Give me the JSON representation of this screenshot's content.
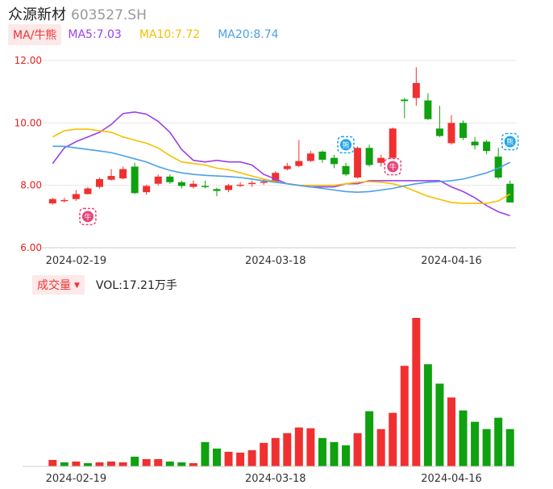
{
  "stock": {
    "name": "众源新材",
    "code": "603527.SH"
  },
  "ma_legend": {
    "tag": "MA/牛熊",
    "ma5": "MA5:7.03",
    "ma10": "MA10:7.72",
    "ma20": "MA20:8.74"
  },
  "volume_legend": {
    "tag": "成交量",
    "value": "VOL:17.21万手"
  },
  "colors": {
    "up": "#f03030",
    "down": "#0fa10f",
    "ma5": "#9b40e8",
    "ma10": "#f5c000",
    "ma20": "#4aa0e8",
    "axis": "#e02020"
  },
  "chart_data": [
    {
      "type": "candlestick",
      "title": "",
      "y_ticks": [
        "12.00",
        "10.00",
        "8.00",
        "6.00"
      ],
      "y_tick_values": [
        12,
        10,
        8,
        6
      ],
      "ylim": [
        6,
        12
      ],
      "x_ticks": [
        {
          "label": "2024-02-19",
          "index": 2
        },
        {
          "label": "2024-03-18",
          "index": 19
        },
        {
          "label": "2024-04-16",
          "index": 34
        }
      ],
      "candles": [
        {
          "o": 7.42,
          "c": 7.56,
          "h": 7.6,
          "l": 7.38
        },
        {
          "o": 7.5,
          "c": 7.53,
          "h": 7.6,
          "l": 7.45
        },
        {
          "o": 7.56,
          "c": 7.72,
          "h": 7.85,
          "l": 7.5
        },
        {
          "o": 7.72,
          "c": 7.9,
          "h": 7.95,
          "l": 7.7
        },
        {
          "o": 7.95,
          "c": 8.2,
          "h": 8.25,
          "l": 7.9
        },
        {
          "o": 8.18,
          "c": 8.3,
          "h": 8.52,
          "l": 8.15
        },
        {
          "o": 8.22,
          "c": 8.52,
          "h": 8.6,
          "l": 8.2
        },
        {
          "o": 8.6,
          "c": 7.75,
          "h": 8.72,
          "l": 7.72
        },
        {
          "o": 7.78,
          "c": 7.98,
          "h": 8.02,
          "l": 7.7
        },
        {
          "o": 8.05,
          "c": 8.28,
          "h": 8.35,
          "l": 8.0
        },
        {
          "o": 8.28,
          "c": 8.1,
          "h": 8.35,
          "l": 8.05
        },
        {
          "o": 8.1,
          "c": 7.98,
          "h": 8.15,
          "l": 7.9
        },
        {
          "o": 7.95,
          "c": 8.05,
          "h": 8.15,
          "l": 7.9
        },
        {
          "o": 7.98,
          "c": 7.96,
          "h": 8.15,
          "l": 7.9
        },
        {
          "o": 7.88,
          "c": 7.82,
          "h": 7.92,
          "l": 7.65
        },
        {
          "o": 7.85,
          "c": 8.0,
          "h": 8.05,
          "l": 7.78
        },
        {
          "o": 8.02,
          "c": 8.02,
          "h": 8.1,
          "l": 7.95
        },
        {
          "o": 8.05,
          "c": 8.08,
          "h": 8.15,
          "l": 7.95
        },
        {
          "o": 8.1,
          "c": 8.12,
          "h": 8.2,
          "l": 8.02
        },
        {
          "o": 8.12,
          "c": 8.4,
          "h": 8.45,
          "l": 8.1
        },
        {
          "o": 8.52,
          "c": 8.62,
          "h": 8.72,
          "l": 8.48
        },
        {
          "o": 8.62,
          "c": 8.78,
          "h": 9.45,
          "l": 8.58
        },
        {
          "o": 8.78,
          "c": 9.02,
          "h": 9.1,
          "l": 8.75
        },
        {
          "o": 9.08,
          "c": 8.82,
          "h": 9.12,
          "l": 8.72
        },
        {
          "o": 8.88,
          "c": 8.68,
          "h": 8.98,
          "l": 8.55
        },
        {
          "o": 8.62,
          "c": 8.35,
          "h": 8.72,
          "l": 8.3
        },
        {
          "o": 8.25,
          "c": 9.2,
          "h": 9.25,
          "l": 8.22
        },
        {
          "o": 9.2,
          "c": 8.65,
          "h": 9.3,
          "l": 8.6
        },
        {
          "o": 8.72,
          "c": 8.88,
          "h": 8.98,
          "l": 8.6
        },
        {
          "o": 8.88,
          "c": 9.82,
          "h": 9.85,
          "l": 8.85
        },
        {
          "o": 10.75,
          "c": 10.7,
          "h": 10.8,
          "l": 10.15
        },
        {
          "o": 10.8,
          "c": 11.28,
          "h": 11.78,
          "l": 10.55
        },
        {
          "o": 10.72,
          "c": 10.12,
          "h": 10.95,
          "l": 10.1
        },
        {
          "o": 9.82,
          "c": 9.58,
          "h": 10.55,
          "l": 9.55
        },
        {
          "o": 9.35,
          "c": 10.0,
          "h": 10.25,
          "l": 9.3
        },
        {
          "o": 10.0,
          "c": 9.52,
          "h": 10.08,
          "l": 9.45
        },
        {
          "o": 9.4,
          "c": 9.28,
          "h": 9.55,
          "l": 9.15
        },
        {
          "o": 9.4,
          "c": 9.1,
          "h": 9.45,
          "l": 9.0
        },
        {
          "o": 8.92,
          "c": 8.25,
          "h": 9.2,
          "l": 8.2
        },
        {
          "o": 8.05,
          "c": 7.45,
          "h": 8.15,
          "l": 7.45
        }
      ],
      "series": [
        {
          "name": "MA5",
          "values": [
            8.7,
            9.2,
            9.4,
            9.55,
            9.7,
            9.95,
            10.3,
            10.35,
            10.28,
            10.05,
            9.7,
            9.15,
            8.8,
            8.75,
            8.8,
            8.75,
            8.75,
            8.65,
            8.35,
            8.2,
            8.05,
            8.0,
            7.95,
            7.95,
            7.95,
            8.05,
            8.05,
            8.15,
            8.15,
            8.15,
            8.15,
            8.15,
            8.15,
            8.15,
            7.95,
            7.8,
            7.6,
            7.35,
            7.15,
            7.03
          ]
        },
        {
          "name": "MA10",
          "values": [
            9.55,
            9.75,
            9.8,
            9.8,
            9.75,
            9.7,
            9.55,
            9.45,
            9.35,
            9.2,
            8.95,
            8.75,
            8.7,
            8.65,
            8.55,
            8.5,
            8.4,
            8.3,
            8.2,
            8.12,
            8.05,
            8.0,
            8.0,
            8.0,
            8.0,
            8.05,
            8.1,
            8.12,
            8.1,
            8.05,
            7.95,
            7.8,
            7.65,
            7.55,
            7.45,
            7.42,
            7.42,
            7.42,
            7.5,
            7.72
          ]
        },
        {
          "name": "MA20",
          "values": [
            9.25,
            9.25,
            9.2,
            9.15,
            9.1,
            9.05,
            8.95,
            8.85,
            8.75,
            8.6,
            8.48,
            8.4,
            8.35,
            8.32,
            8.3,
            8.28,
            8.25,
            8.2,
            8.15,
            8.1,
            8.05,
            8.0,
            7.95,
            7.9,
            7.85,
            7.8,
            7.78,
            7.8,
            7.85,
            7.9,
            7.98,
            8.05,
            8.1,
            8.12,
            8.15,
            8.2,
            8.3,
            8.4,
            8.55,
            8.74
          ]
        }
      ],
      "markers": [
        {
          "label": "牛",
          "index": 3,
          "price": 7.0,
          "kind": "bull"
        },
        {
          "label": "熊",
          "index": 25,
          "price": 9.3,
          "kind": "bear"
        },
        {
          "label": "牛",
          "index": 29,
          "price": 8.6,
          "kind": "bull"
        },
        {
          "label": "熊",
          "index": 39,
          "price": 9.4,
          "kind": "bear"
        }
      ]
    },
    {
      "type": "bar",
      "title": "",
      "x_ticks": [
        {
          "label": "2024-02-19",
          "index": 2
        },
        {
          "label": "2024-03-18",
          "index": 19
        },
        {
          "label": "2024-04-16",
          "index": 34
        }
      ],
      "values": [
        0.8,
        0.5,
        0.6,
        0.4,
        0.5,
        0.6,
        0.5,
        1.2,
        0.9,
        0.9,
        0.6,
        0.5,
        0.4,
        3.0,
        2.2,
        1.8,
        1.7,
        2.0,
        2.9,
        3.5,
        4.1,
        4.8,
        4.7,
        3.5,
        3.0,
        2.6,
        4.1,
        6.8,
        4.6,
        6.6,
        12.4,
        18.3,
        12.6,
        10.2,
        8.5,
        6.9,
        5.5,
        4.6,
        6.0,
        4.6
      ],
      "directions": [
        "up",
        "down",
        "up",
        "down",
        "up",
        "up",
        "up",
        "down",
        "up",
        "up",
        "down",
        "down",
        "up",
        "down",
        "down",
        "up",
        "up",
        "up",
        "up",
        "up",
        "up",
        "up",
        "up",
        "down",
        "down",
        "down",
        "up",
        "down",
        "up",
        "up",
        "up",
        "up",
        "down",
        "down",
        "up",
        "down",
        "down",
        "down",
        "down",
        "down"
      ]
    }
  ]
}
